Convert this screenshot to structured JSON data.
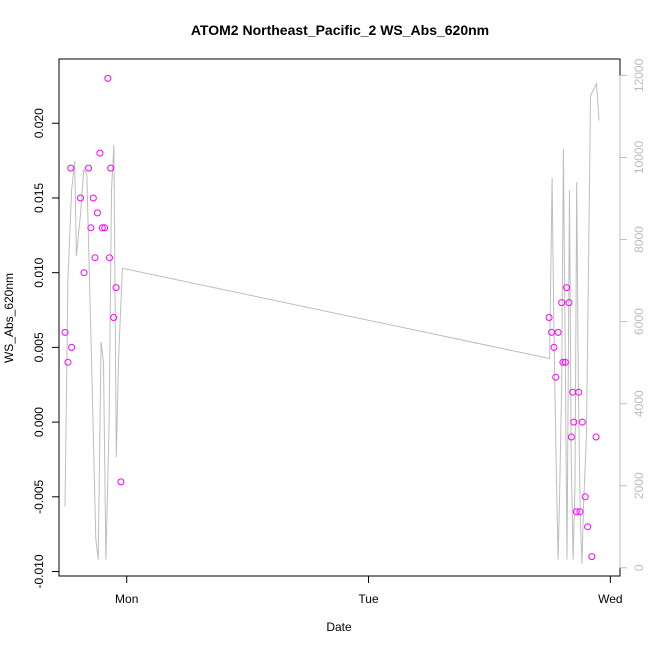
{
  "chart_data": {
    "type": "scatter",
    "title": "ATOM2 Northeast_Pacific_2 WS_Abs_620nm",
    "xlabel": "Date",
    "ylabel": "WS_Abs_620nm",
    "x_axis": {
      "range_days": [
        -0.28,
        2.04
      ],
      "ticks": [
        {
          "value": 0,
          "label": "Mon"
        },
        {
          "value": 1,
          "label": "Tue"
        },
        {
          "value": 2,
          "label": "Wed"
        }
      ]
    },
    "y_left": {
      "range": [
        -0.0103,
        0.0243
      ],
      "ticks": [
        {
          "value": -0.01,
          "label": "-0.010"
        },
        {
          "value": -0.005,
          "label": "-0.005"
        },
        {
          "value": 0.0,
          "label": "0.000"
        },
        {
          "value": 0.005,
          "label": "0.005"
        },
        {
          "value": 0.01,
          "label": "0.010"
        },
        {
          "value": 0.015,
          "label": "0.015"
        },
        {
          "value": 0.02,
          "label": "0.020"
        }
      ]
    },
    "y_right": {
      "range": [
        -200,
        12400
      ],
      "ticks": [
        {
          "value": 0,
          "label": "0"
        },
        {
          "value": 2000,
          "label": "2000"
        },
        {
          "value": 4000,
          "label": "4000"
        },
        {
          "value": 6000,
          "label": "6000"
        },
        {
          "value": 8000,
          "label": "8000"
        },
        {
          "value": 10000,
          "label": "10000"
        },
        {
          "value": 12000,
          "label": "12000"
        }
      ]
    },
    "grid": false,
    "colors": {
      "points": "#ff00ff",
      "line": "#bdbdbd",
      "axis": "#000000"
    },
    "series": [
      {
        "type": "scatter",
        "axis": "left",
        "points": [
          [
            -0.255,
            0.006
          ],
          [
            -0.243,
            0.004
          ],
          [
            -0.231,
            0.017
          ],
          [
            -0.228,
            0.005
          ],
          [
            -0.191,
            0.015
          ],
          [
            -0.176,
            0.01
          ],
          [
            -0.158,
            0.017
          ],
          [
            -0.148,
            0.013
          ],
          [
            -0.138,
            0.015
          ],
          [
            -0.131,
            0.011
          ],
          [
            -0.121,
            0.014
          ],
          [
            -0.111,
            0.018
          ],
          [
            -0.101,
            0.013
          ],
          [
            -0.091,
            0.013
          ],
          [
            -0.078,
            0.023
          ],
          [
            -0.071,
            0.011
          ],
          [
            -0.066,
            0.017
          ],
          [
            -0.054,
            0.007
          ],
          [
            -0.044,
            0.009
          ],
          [
            -0.024,
            -0.004
          ],
          [
            1.747,
            0.007
          ],
          [
            1.757,
            0.006
          ],
          [
            1.767,
            0.005
          ],
          [
            1.774,
            0.003
          ],
          [
            1.784,
            0.006
          ],
          [
            1.799,
            0.008
          ],
          [
            1.804,
            0.004
          ],
          [
            1.814,
            0.004
          ],
          [
            1.819,
            0.009
          ],
          [
            1.829,
            0.008
          ],
          [
            1.839,
            -0.001
          ],
          [
            1.844,
            0.002
          ],
          [
            1.849,
            0.0
          ],
          [
            1.859,
            -0.006
          ],
          [
            1.869,
            0.002
          ],
          [
            1.874,
            -0.006
          ],
          [
            1.884,
            0.0
          ],
          [
            1.896,
            -0.005
          ],
          [
            1.906,
            -0.007
          ],
          [
            1.924,
            -0.009
          ],
          [
            1.941,
            -0.001
          ]
        ]
      },
      {
        "type": "line",
        "axis": "right",
        "points": [
          [
            -0.255,
            1500
          ],
          [
            -0.243,
            7000
          ],
          [
            -0.228,
            9200
          ],
          [
            -0.215,
            9900
          ],
          [
            -0.208,
            7600
          ],
          [
            -0.19,
            8700
          ],
          [
            -0.178,
            9700
          ],
          [
            -0.165,
            9600
          ],
          [
            -0.145,
            5000
          ],
          [
            -0.128,
            700
          ],
          [
            -0.118,
            200
          ],
          [
            -0.106,
            5500
          ],
          [
            -0.096,
            5000
          ],
          [
            -0.086,
            200
          ],
          [
            -0.073,
            3500
          ],
          [
            -0.063,
            9200
          ],
          [
            -0.053,
            10300
          ],
          [
            -0.043,
            2700
          ],
          [
            -0.033,
            5200
          ],
          [
            -0.018,
            7300
          ],
          [
            1.749,
            5100
          ],
          [
            1.759,
            9500
          ],
          [
            1.766,
            6200
          ],
          [
            1.776,
            2500
          ],
          [
            1.784,
            200
          ],
          [
            1.791,
            2000
          ],
          [
            1.799,
            4500
          ],
          [
            1.806,
            10200
          ],
          [
            1.813,
            5600
          ],
          [
            1.821,
            200
          ],
          [
            1.831,
            9200
          ],
          [
            1.838,
            2700
          ],
          [
            1.846,
            200
          ],
          [
            1.854,
            2000
          ],
          [
            1.861,
            9400
          ],
          [
            1.868,
            4300
          ],
          [
            1.876,
            1200
          ],
          [
            1.883,
            100
          ],
          [
            1.889,
            1500
          ],
          [
            1.901,
            3200
          ],
          [
            1.911,
            7900
          ],
          [
            1.918,
            11500
          ],
          [
            1.943,
            11800
          ],
          [
            1.953,
            10900
          ]
        ]
      }
    ]
  }
}
